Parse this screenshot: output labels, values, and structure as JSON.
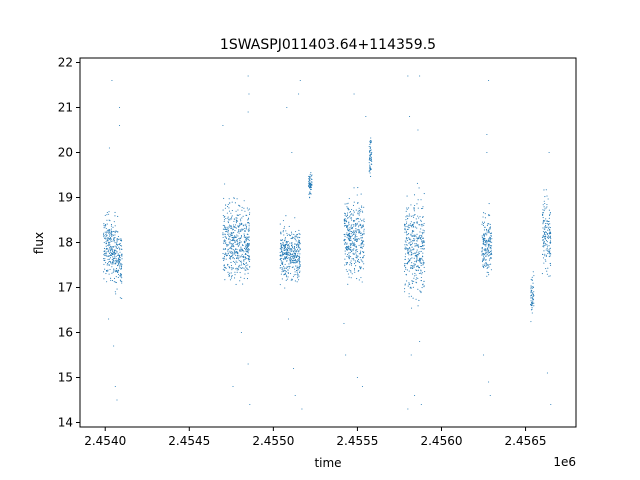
{
  "chart_data": {
    "type": "scatter",
    "title": "1SWASPJ011403.64+114359.5",
    "xlabel": "time",
    "ylabel": "flux",
    "x_offset_label": "1e6",
    "x_scale": 1000000,
    "xlim": [
      2453850,
      2456800
    ],
    "ylim": [
      13.9,
      22.1
    ],
    "x_ticks": [
      2454000,
      2454500,
      2455000,
      2455500,
      2456000,
      2456500
    ],
    "x_tick_labels": [
      "2.4540",
      "2.4545",
      "2.4550",
      "2.4555",
      "2.4560",
      "2.4565"
    ],
    "y_ticks": [
      14,
      15,
      16,
      17,
      18,
      19,
      20,
      21,
      22
    ],
    "y_tick_labels": [
      "14",
      "15",
      "16",
      "17",
      "18",
      "19",
      "20",
      "21",
      "22"
    ],
    "grid": false,
    "color": "#1f77b4",
    "series": [
      {
        "clusters": [
          {
            "x": [
              2453990,
              2454060
            ],
            "core": [
              16.8,
              19.0
            ],
            "outliers": [
              [
                2454040,
                21.6
              ],
              [
                2454085,
                21.0
              ],
              [
                2454085,
                20.6
              ],
              [
                2454025,
                20.1
              ],
              [
                2454060,
                14.8
              ],
              [
                2454070,
                14.5
              ],
              [
                2454050,
                15.7
              ],
              [
                2454020,
                16.3
              ]
            ]
          },
          {
            "x": [
              2454060,
              2454100
            ],
            "core": [
              16.5,
              18.8
            ],
            "outliers": []
          },
          {
            "x": [
              2454700,
              2454860
            ],
            "core": [
              16.7,
              19.3
            ],
            "outliers": [
              [
                2454850,
                21.7
              ],
              [
                2454850,
                20.9
              ],
              [
                2454855,
                21.3
              ],
              [
                2454700,
                20.6
              ],
              [
                2454710,
                19.3
              ],
              [
                2454760,
                14.8
              ],
              [
                2454860,
                14.4
              ],
              [
                2454850,
                15.3
              ],
              [
                2454810,
                16.0
              ]
            ]
          },
          {
            "x": [
              2455040,
              2455160
            ],
            "core": [
              16.8,
              18.7
            ],
            "outliers": [
              [
                2455080,
                21.0
              ],
              [
                2455150,
                21.3
              ],
              [
                2455160,
                21.6
              ],
              [
                2455110,
                20.0
              ],
              [
                2455130,
                14.6
              ],
              [
                2455170,
                14.3
              ],
              [
                2455120,
                15.2
              ],
              [
                2455090,
                16.3
              ]
            ]
          },
          {
            "x": [
              2455210,
              2455230
            ],
            "core": [
              18.9,
              19.7
            ],
            "outliers": []
          },
          {
            "x": [
              2455420,
              2455540
            ],
            "core": [
              16.8,
              19.4
            ],
            "outliers": [
              [
                2455480,
                21.3
              ],
              [
                2455550,
                20.8
              ],
              [
                2455430,
                15.5
              ],
              [
                2455500,
                15.0
              ],
              [
                2455530,
                14.8
              ],
              [
                2455420,
                16.2
              ]
            ]
          },
          {
            "x": [
              2455570,
              2455585
            ],
            "core": [
              19.2,
              20.6
            ],
            "outliers": []
          },
          {
            "x": [
              2455780,
              2455900
            ],
            "core": [
              16.2,
              19.6
            ],
            "outliers": [
              [
                2455800,
                21.7
              ],
              [
                2455870,
                21.7
              ],
              [
                2455810,
                20.8
              ],
              [
                2455860,
                20.5
              ],
              [
                2455800,
                14.3
              ],
              [
                2455840,
                14.6
              ],
              [
                2455880,
                14.4
              ],
              [
                2455820,
                15.5
              ],
              [
                2455870,
                15.8
              ]
            ]
          },
          {
            "x": [
              2456240,
              2456300
            ],
            "core": [
              16.9,
              19.0
            ],
            "outliers": [
              [
                2456280,
                21.6
              ],
              [
                2456270,
                20.4
              ],
              [
                2456270,
                20.0
              ],
              [
                2456280,
                14.9
              ],
              [
                2456250,
                15.5
              ],
              [
                2456290,
                14.6
              ]
            ]
          },
          {
            "x": [
              2456530,
              2456550
            ],
            "core": [
              16.0,
              17.6
            ],
            "outliers": []
          },
          {
            "x": [
              2456600,
              2456650
            ],
            "core": [
              16.8,
              19.5
            ],
            "outliers": [
              [
                2456640,
                20.0
              ],
              [
                2456650,
                14.4
              ],
              [
                2456630,
                15.1
              ]
            ]
          }
        ]
      }
    ]
  }
}
